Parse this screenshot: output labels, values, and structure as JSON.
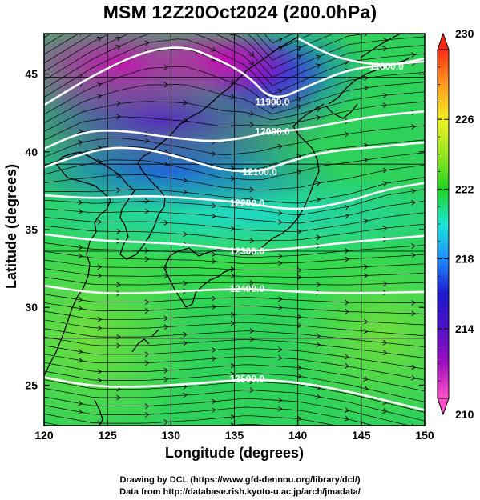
{
  "title": "MSM 12Z20Oct2024 (200.0hPa)",
  "xlabel": "Longitude (degrees)",
  "ylabel": "Latitude  (degrees)",
  "credits": {
    "line1": "Drawing by DCL (https://www.gfd-dennou.org/library/dcl/)",
    "line2": "Data from http://database.rish.kyoto-u.ac.jp/arch/jmadata/"
  },
  "chart_data": {
    "type": "heatmap",
    "title": "MSM 12Z20Oct2024 (200.0hPa)",
    "xlabel": "Longitude (degrees)",
    "ylabel": "Latitude  (degrees)",
    "xlim": [
      120,
      150
    ],
    "ylim": [
      22.4,
      47.6
    ],
    "x_ticks": [
      120,
      125,
      130,
      135,
      140,
      145,
      150
    ],
    "y_ticks": [
      25,
      30,
      35,
      40,
      45
    ],
    "grid": true,
    "colorbar": {
      "range": [
        210,
        230
      ],
      "ticks": [
        210,
        214,
        218,
        222,
        226,
        230
      ],
      "colors": [
        "#ff4fc8",
        "#a010c0",
        "#1a1ad0",
        "#1e8cff",
        "#19e6d6",
        "#1ed21e",
        "#96e61e",
        "#f0f01e",
        "#ff9a1e",
        "#ff2a14"
      ]
    },
    "field_regions": [
      {
        "lon": 122,
        "lat": 46,
        "value": 210.5
      },
      {
        "lon": 128,
        "lat": 43,
        "value": 211
      },
      {
        "lon": 135,
        "lat": 46,
        "value": 212
      },
      {
        "lon": 128,
        "lat": 38,
        "value": 216
      },
      {
        "lon": 137,
        "lat": 38,
        "value": 219
      },
      {
        "lon": 145,
        "lat": 44,
        "value": 221
      },
      {
        "lon": 130,
        "lat": 32,
        "value": 220
      },
      {
        "lon": 125,
        "lat": 27,
        "value": 222
      },
      {
        "lon": 138,
        "lat": 26,
        "value": 221
      },
      {
        "lon": 147,
        "lat": 30,
        "value": 222.5
      }
    ],
    "contours": [
      {
        "label": "11900.0",
        "points": [
          [
            120,
            43.0
          ],
          [
            124,
            45.0
          ],
          [
            128,
            46.5
          ],
          [
            131,
            46.8
          ],
          [
            133,
            46.2
          ],
          [
            136,
            45.0
          ],
          [
            138,
            43.2
          ],
          [
            141,
            44.3
          ],
          [
            144,
            45.3
          ],
          [
            147,
            45.6
          ],
          [
            150,
            45.8
          ]
        ]
      },
      {
        "label": "11600.0",
        "points": [
          [
            140,
            47.3
          ],
          [
            143,
            46.0
          ],
          [
            147,
            45.5
          ],
          [
            150,
            46.0
          ]
        ]
      },
      {
        "label": "12000.0",
        "points": [
          [
            120,
            40.2
          ],
          [
            123,
            41.3
          ],
          [
            126,
            41.4
          ],
          [
            130,
            40.9
          ],
          [
            134,
            40.6
          ],
          [
            138,
            41.3
          ],
          [
            140,
            41.4
          ],
          [
            142,
            41.7
          ],
          [
            146,
            42.3
          ],
          [
            150,
            42.6
          ]
        ]
      },
      {
        "label": "12100.0",
        "points": [
          [
            120,
            39.0
          ],
          [
            122,
            39.6
          ],
          [
            125,
            40.3
          ],
          [
            128,
            40.2
          ],
          [
            131,
            39.6
          ],
          [
            134,
            38.8
          ],
          [
            137,
            38.7
          ],
          [
            139,
            39.3
          ],
          [
            142,
            40.0
          ],
          [
            146,
            40.3
          ],
          [
            150,
            40.6
          ]
        ]
      },
      {
        "label": "12200.0",
        "points": [
          [
            120,
            37.2
          ],
          [
            124,
            37.0
          ],
          [
            128,
            37.2
          ],
          [
            132,
            37.0
          ],
          [
            136,
            36.7
          ],
          [
            140,
            36.2
          ],
          [
            144,
            36.8
          ],
          [
            147,
            37.6
          ],
          [
            150,
            38.0
          ]
        ]
      },
      {
        "label": "12300.0",
        "points": [
          [
            120,
            34.7
          ],
          [
            124,
            34.3
          ],
          [
            128,
            34.2
          ],
          [
            132,
            34.0
          ],
          [
            136,
            33.6
          ],
          [
            140,
            33.8
          ],
          [
            144,
            34.2
          ],
          [
            150,
            34.6
          ]
        ]
      },
      {
        "label": "12400.0",
        "points": [
          [
            120,
            31.4
          ],
          [
            124,
            30.9
          ],
          [
            128,
            30.9
          ],
          [
            132,
            31.1
          ],
          [
            136,
            31.2
          ],
          [
            140,
            31.0
          ],
          [
            144,
            30.9
          ],
          [
            150,
            31.0
          ]
        ]
      },
      {
        "label": "12500.0",
        "points": [
          [
            120,
            25.5
          ],
          [
            124,
            24.9
          ],
          [
            128,
            24.9
          ],
          [
            132,
            25.1
          ],
          [
            136,
            25.4
          ],
          [
            140,
            25.2
          ],
          [
            144,
            24.6
          ],
          [
            148,
            23.8
          ],
          [
            150,
            23.4
          ]
        ]
      }
    ]
  }
}
